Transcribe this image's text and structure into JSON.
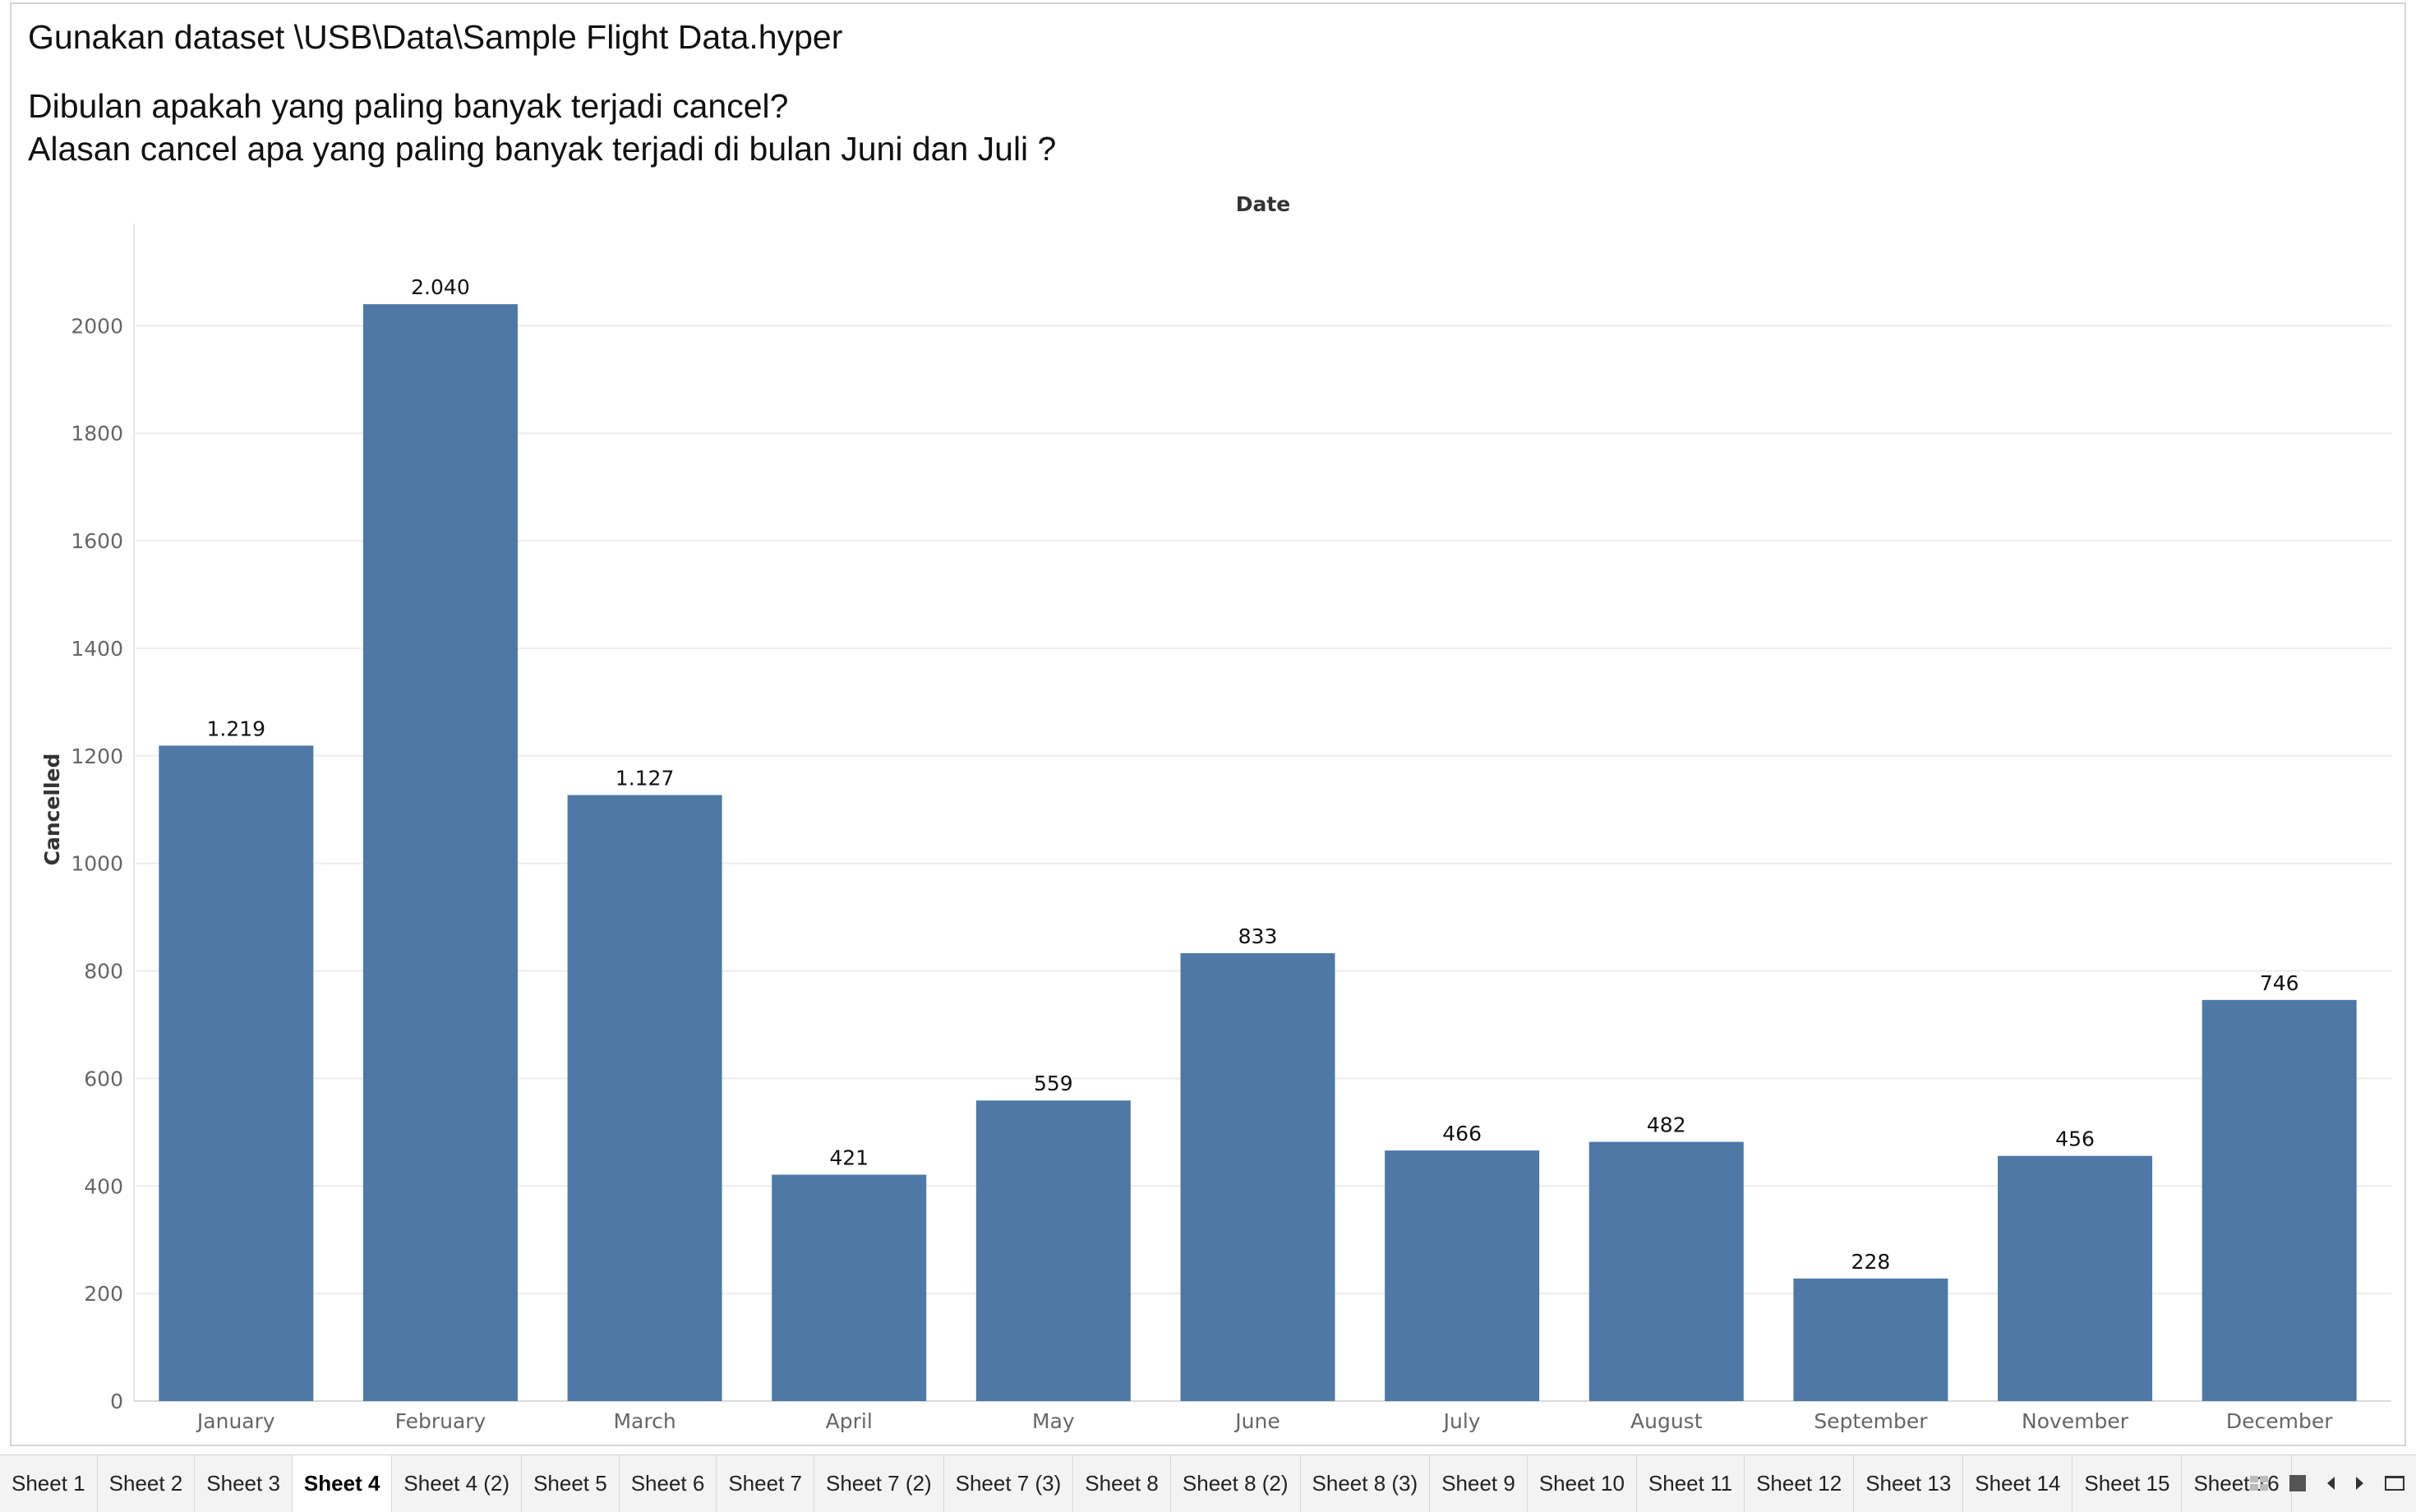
{
  "title": {
    "line1": "Gunakan dataset \\USB\\Data\\Sample Flight Data.hyper",
    "line2": "Dibulan apakah yang paling banyak terjadi cancel?",
    "line3": "Alasan cancel apa yang paling banyak terjadi di bulan Juni dan Juli ?"
  },
  "chart_data": {
    "type": "bar",
    "title": "",
    "xlabel": "Date",
    "ylabel": "Cancelled",
    "categories": [
      "January",
      "February",
      "March",
      "April",
      "May",
      "June",
      "July",
      "August",
      "September",
      "November",
      "December"
    ],
    "values": [
      1219,
      2040,
      1127,
      421,
      559,
      833,
      466,
      482,
      228,
      456,
      746
    ],
    "data_labels": [
      "1.219",
      "2.040",
      "1.127",
      "421",
      "559",
      "833",
      "466",
      "482",
      "228",
      "456",
      "746"
    ],
    "ylim": [
      0,
      2190
    ],
    "yticks": [
      0,
      200,
      400,
      600,
      800,
      1000,
      1200,
      1400,
      1600,
      1800,
      2000
    ],
    "grid": true,
    "bar_color": "#4e79a7"
  },
  "tabs": [
    {
      "label": "Sheet 1",
      "active": false
    },
    {
      "label": "Sheet 2",
      "active": false
    },
    {
      "label": "Sheet 3",
      "active": false
    },
    {
      "label": "Sheet 4",
      "active": true
    },
    {
      "label": "Sheet 4 (2)",
      "active": false
    },
    {
      "label": "Sheet 5",
      "active": false
    },
    {
      "label": "Sheet 6",
      "active": false
    },
    {
      "label": "Sheet 7",
      "active": false
    },
    {
      "label": "Sheet 7 (2)",
      "active": false
    },
    {
      "label": "Sheet 7 (3)",
      "active": false
    },
    {
      "label": "Sheet 8",
      "active": false
    },
    {
      "label": "Sheet 8 (2)",
      "active": false
    },
    {
      "label": "Sheet 8 (3)",
      "active": false
    },
    {
      "label": "Sheet 9",
      "active": false
    },
    {
      "label": "Sheet 10",
      "active": false
    },
    {
      "label": "Sheet 11",
      "active": false
    },
    {
      "label": "Sheet 12",
      "active": false
    },
    {
      "label": "Sheet 13",
      "active": false
    },
    {
      "label": "Sheet 14",
      "active": false
    },
    {
      "label": "Sheet 15",
      "active": false
    },
    {
      "label": "Sheet 16",
      "active": false
    }
  ],
  "toolbar_icons": [
    "grid-view-icon",
    "filmstrip-icon",
    "scroll-left-icon",
    "scroll-right-icon",
    "presentation-icon"
  ]
}
